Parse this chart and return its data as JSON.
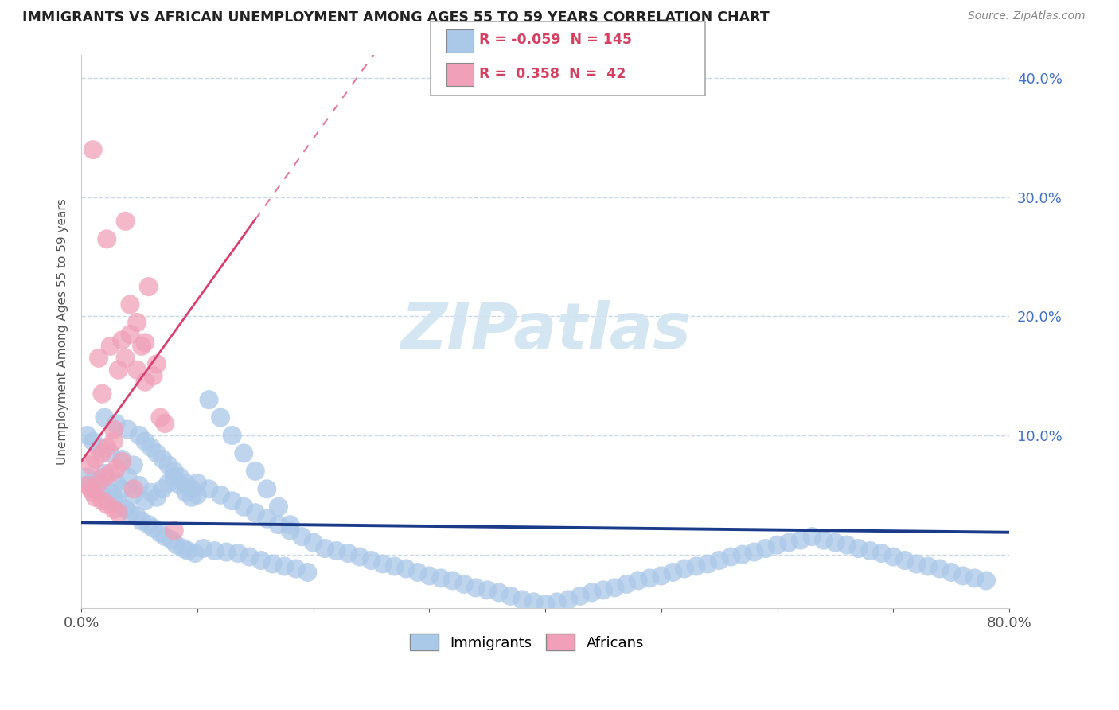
{
  "title": "IMMIGRANTS VS AFRICAN UNEMPLOYMENT AMONG AGES 55 TO 59 YEARS CORRELATION CHART",
  "source": "Source: ZipAtlas.com",
  "ylabel": "Unemployment Among Ages 55 to 59 years",
  "xlim": [
    0.0,
    0.8
  ],
  "ylim": [
    -0.045,
    0.42
  ],
  "xticks": [
    0.0,
    0.1,
    0.2,
    0.3,
    0.4,
    0.5,
    0.6,
    0.7,
    0.8
  ],
  "xticklabels": [
    "0.0%",
    "",
    "",
    "",
    "",
    "",
    "",
    "",
    "80.0%"
  ],
  "yticks": [
    0.0,
    0.1,
    0.2,
    0.3,
    0.4
  ],
  "yticklabels": [
    "",
    "10.0%",
    "20.0%",
    "30.0%",
    "40.0%"
  ],
  "immigrants_R": -0.059,
  "immigrants_N": 145,
  "africans_R": 0.358,
  "africans_N": 42,
  "immigrant_color": "#aac8e8",
  "african_color": "#f0a0b8",
  "immigrant_line_color": "#1a3a8a",
  "african_line_color": "#d84070",
  "background_color": "#ffffff",
  "grid_color": "#c8d8e8",
  "watermark_color": "#d0e4f0",
  "immigrants_x": [
    0.005,
    0.008,
    0.01,
    0.012,
    0.015,
    0.018,
    0.02,
    0.022,
    0.025,
    0.028,
    0.03,
    0.032,
    0.035,
    0.038,
    0.04,
    0.042,
    0.045,
    0.048,
    0.05,
    0.052,
    0.055,
    0.058,
    0.06,
    0.062,
    0.065,
    0.068,
    0.07,
    0.072,
    0.075,
    0.078,
    0.08,
    0.082,
    0.085,
    0.088,
    0.09,
    0.092,
    0.095,
    0.098,
    0.1,
    0.105,
    0.11,
    0.115,
    0.12,
    0.125,
    0.13,
    0.135,
    0.14,
    0.145,
    0.15,
    0.155,
    0.16,
    0.165,
    0.17,
    0.175,
    0.18,
    0.185,
    0.19,
    0.195,
    0.2,
    0.21,
    0.22,
    0.23,
    0.24,
    0.25,
    0.26,
    0.27,
    0.28,
    0.29,
    0.3,
    0.31,
    0.32,
    0.33,
    0.34,
    0.35,
    0.36,
    0.37,
    0.38,
    0.39,
    0.4,
    0.41,
    0.42,
    0.43,
    0.44,
    0.45,
    0.46,
    0.47,
    0.48,
    0.49,
    0.5,
    0.51,
    0.52,
    0.53,
    0.54,
    0.55,
    0.56,
    0.57,
    0.58,
    0.59,
    0.6,
    0.61,
    0.62,
    0.63,
    0.64,
    0.65,
    0.66,
    0.67,
    0.68,
    0.69,
    0.7,
    0.71,
    0.72,
    0.73,
    0.74,
    0.75,
    0.76,
    0.77,
    0.78,
    0.005,
    0.01,
    0.015,
    0.02,
    0.025,
    0.03,
    0.035,
    0.04,
    0.045,
    0.05,
    0.055,
    0.06,
    0.065,
    0.07,
    0.075,
    0.08,
    0.085,
    0.09,
    0.095,
    0.1,
    0.11,
    0.12,
    0.13,
    0.14,
    0.15,
    0.16,
    0.17,
    0.18
  ],
  "immigrants_y": [
    0.065,
    0.06,
    0.058,
    0.055,
    0.062,
    0.05,
    0.068,
    0.045,
    0.052,
    0.048,
    0.06,
    0.042,
    0.055,
    0.038,
    0.065,
    0.035,
    0.05,
    0.032,
    0.058,
    0.028,
    0.045,
    0.025,
    0.052,
    0.022,
    0.048,
    0.018,
    0.055,
    0.015,
    0.06,
    0.012,
    0.065,
    0.008,
    0.058,
    0.005,
    0.052,
    0.003,
    0.048,
    0.001,
    0.06,
    0.005,
    0.055,
    0.003,
    0.05,
    0.002,
    0.045,
    0.001,
    0.04,
    -0.002,
    0.035,
    -0.005,
    0.03,
    -0.008,
    0.025,
    -0.01,
    0.02,
    -0.012,
    0.015,
    -0.015,
    0.01,
    0.005,
    0.003,
    0.001,
    -0.002,
    -0.005,
    -0.008,
    -0.01,
    -0.012,
    -0.015,
    -0.018,
    -0.02,
    -0.022,
    -0.025,
    -0.028,
    -0.03,
    -0.032,
    -0.035,
    -0.038,
    -0.04,
    -0.042,
    -0.04,
    -0.038,
    -0.035,
    -0.032,
    -0.03,
    -0.028,
    -0.025,
    -0.022,
    -0.02,
    -0.018,
    -0.015,
    -0.012,
    -0.01,
    -0.008,
    -0.005,
    -0.002,
    0.0,
    0.002,
    0.005,
    0.008,
    0.01,
    0.012,
    0.015,
    0.012,
    0.01,
    0.008,
    0.005,
    0.003,
    0.001,
    -0.002,
    -0.005,
    -0.008,
    -0.01,
    -0.012,
    -0.015,
    -0.018,
    -0.02,
    -0.022,
    0.1,
    0.095,
    0.09,
    0.115,
    0.085,
    0.11,
    0.08,
    0.105,
    0.075,
    0.1,
    0.095,
    0.09,
    0.085,
    0.08,
    0.075,
    0.07,
    0.065,
    0.06,
    0.055,
    0.05,
    0.13,
    0.115,
    0.1,
    0.085,
    0.07,
    0.055,
    0.04,
    0.025
  ],
  "africans_x": [
    0.005,
    0.008,
    0.01,
    0.012,
    0.015,
    0.018,
    0.02,
    0.022,
    0.025,
    0.028,
    0.03,
    0.032,
    0.035,
    0.008,
    0.012,
    0.018,
    0.022,
    0.028,
    0.032,
    0.038,
    0.025,
    0.035,
    0.042,
    0.015,
    0.048,
    0.055,
    0.062,
    0.038,
    0.048,
    0.058,
    0.042,
    0.052,
    0.022,
    0.065,
    0.01,
    0.028,
    0.072,
    0.018,
    0.055,
    0.045,
    0.068,
    0.08
  ],
  "africans_y": [
    0.058,
    0.055,
    0.052,
    0.048,
    0.06,
    0.045,
    0.065,
    0.042,
    0.068,
    0.038,
    0.072,
    0.035,
    0.078,
    0.075,
    0.08,
    0.085,
    0.09,
    0.095,
    0.155,
    0.165,
    0.175,
    0.18,
    0.185,
    0.165,
    0.195,
    0.145,
    0.15,
    0.28,
    0.155,
    0.225,
    0.21,
    0.175,
    0.265,
    0.16,
    0.34,
    0.105,
    0.11,
    0.135,
    0.178,
    0.055,
    0.115,
    0.02
  ]
}
